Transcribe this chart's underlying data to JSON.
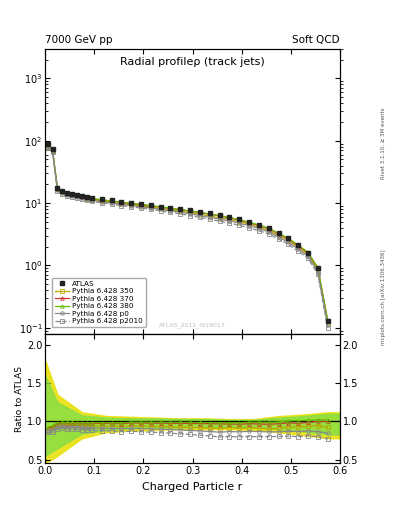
{
  "title": "Radial profileρ (track jets)",
  "top_left_label": "7000 GeV pp",
  "top_right_label": "Soft QCD",
  "right_label_top": "Rivet 3.1.10, ≥ 3M events",
  "right_label_bot": "mcplots.cern.ch [arXiv:1306.3436]",
  "watermark": "ATLAS_2011_I919017",
  "xlabel": "Charged Particle r",
  "ylabel_ratio": "Ratio to ATLAS",
  "background_color": "#ffffff",
  "atlas_x": [
    0.005,
    0.015,
    0.025,
    0.035,
    0.045,
    0.055,
    0.065,
    0.075,
    0.085,
    0.095,
    0.115,
    0.135,
    0.155,
    0.175,
    0.195,
    0.215,
    0.235,
    0.255,
    0.275,
    0.295,
    0.315,
    0.335,
    0.355,
    0.375,
    0.395,
    0.415,
    0.435,
    0.455,
    0.475,
    0.495,
    0.515,
    0.535,
    0.555,
    0.575
  ],
  "atlas_y": [
    90.0,
    75.0,
    17.5,
    15.5,
    14.5,
    14.0,
    13.5,
    13.0,
    12.5,
    12.0,
    11.5,
    11.0,
    10.5,
    10.0,
    9.6,
    9.2,
    8.8,
    8.4,
    8.0,
    7.6,
    7.2,
    6.8,
    6.4,
    6.0,
    5.5,
    5.0,
    4.5,
    4.0,
    3.3,
    2.7,
    2.1,
    1.6,
    0.9,
    0.13
  ],
  "py350_y": [
    80.0,
    68.0,
    16.5,
    14.8,
    13.8,
    13.3,
    12.8,
    12.3,
    11.8,
    11.3,
    10.8,
    10.3,
    9.8,
    9.4,
    9.0,
    8.6,
    8.2,
    7.8,
    7.4,
    7.0,
    6.6,
    6.2,
    5.8,
    5.5,
    5.0,
    4.6,
    4.1,
    3.6,
    3.0,
    2.5,
    1.95,
    1.5,
    0.85,
    0.12
  ],
  "py370_y": [
    82.0,
    70.0,
    17.0,
    15.2,
    14.2,
    13.7,
    13.2,
    12.7,
    12.2,
    11.7,
    11.2,
    10.7,
    10.2,
    9.8,
    9.4,
    9.0,
    8.6,
    8.2,
    7.8,
    7.4,
    7.0,
    6.6,
    6.2,
    5.8,
    5.3,
    4.85,
    4.35,
    3.85,
    3.2,
    2.65,
    2.05,
    1.58,
    0.9,
    0.13
  ],
  "py380_y": [
    83.0,
    71.0,
    17.2,
    15.3,
    14.3,
    13.8,
    13.3,
    12.8,
    12.3,
    11.8,
    11.3,
    10.8,
    10.3,
    9.9,
    9.5,
    9.1,
    8.7,
    8.3,
    7.9,
    7.5,
    7.1,
    6.7,
    6.3,
    5.9,
    5.4,
    4.95,
    4.45,
    3.95,
    3.28,
    2.72,
    2.12,
    1.62,
    0.92,
    0.132
  ],
  "pyp0_y": [
    79.0,
    67.0,
    16.2,
    14.5,
    13.5,
    13.0,
    12.5,
    12.0,
    11.5,
    11.0,
    10.5,
    10.0,
    9.5,
    9.1,
    8.7,
    8.3,
    7.9,
    7.5,
    7.1,
    6.7,
    6.3,
    5.9,
    5.5,
    5.2,
    4.75,
    4.35,
    3.9,
    3.45,
    2.85,
    2.35,
    1.82,
    1.4,
    0.78,
    0.11
  ],
  "pyp2010_y": [
    77.0,
    65.0,
    15.8,
    14.1,
    13.1,
    12.6,
    12.1,
    11.6,
    11.1,
    10.6,
    10.1,
    9.6,
    9.1,
    8.7,
    8.3,
    7.9,
    7.5,
    7.1,
    6.7,
    6.3,
    5.9,
    5.5,
    5.1,
    4.8,
    4.4,
    4.0,
    3.6,
    3.2,
    2.65,
    2.18,
    1.68,
    1.3,
    0.72,
    0.1
  ],
  "ratio_x": [
    0.005,
    0.015,
    0.025,
    0.035,
    0.045,
    0.055,
    0.065,
    0.075,
    0.085,
    0.095,
    0.115,
    0.135,
    0.155,
    0.175,
    0.195,
    0.215,
    0.235,
    0.255,
    0.275,
    0.295,
    0.315,
    0.335,
    0.355,
    0.375,
    0.395,
    0.415,
    0.435,
    0.455,
    0.475,
    0.495,
    0.515,
    0.535,
    0.555,
    0.575
  ],
  "ratio_py350": [
    0.89,
    0.91,
    0.94,
    0.955,
    0.952,
    0.95,
    0.948,
    0.946,
    0.944,
    0.942,
    0.94,
    0.936,
    0.933,
    0.94,
    0.938,
    0.935,
    0.932,
    0.929,
    0.925,
    0.921,
    0.917,
    0.912,
    0.906,
    0.917,
    0.909,
    0.92,
    0.911,
    0.9,
    0.909,
    0.926,
    0.929,
    0.938,
    0.944,
    0.923
  ],
  "ratio_py370": [
    0.91,
    0.93,
    0.97,
    0.981,
    0.979,
    0.979,
    0.978,
    0.977,
    0.976,
    0.975,
    0.974,
    0.973,
    0.971,
    0.98,
    0.979,
    0.978,
    0.977,
    0.976,
    0.975,
    0.974,
    0.972,
    0.971,
    0.969,
    0.967,
    0.964,
    0.97,
    0.967,
    0.963,
    0.97,
    0.981,
    0.976,
    0.988,
    1.0,
    1.0
  ],
  "ratio_py380": [
    0.92,
    0.945,
    0.983,
    0.987,
    0.986,
    0.986,
    0.985,
    0.985,
    0.984,
    0.983,
    0.983,
    0.982,
    0.981,
    0.99,
    0.99,
    0.989,
    0.989,
    0.988,
    0.988,
    0.987,
    0.986,
    0.985,
    0.984,
    0.983,
    0.982,
    0.99,
    0.989,
    0.988,
    0.994,
    1.007,
    1.01,
    1.013,
    1.022,
    1.015
  ],
  "ratio_pyp0": [
    0.878,
    0.893,
    0.926,
    0.935,
    0.931,
    0.929,
    0.926,
    0.923,
    0.92,
    0.917,
    0.913,
    0.909,
    0.905,
    0.91,
    0.906,
    0.902,
    0.898,
    0.893,
    0.888,
    0.882,
    0.875,
    0.868,
    0.859,
    0.867,
    0.864,
    0.87,
    0.867,
    0.863,
    0.864,
    0.87,
    0.867,
    0.875,
    0.867,
    0.846
  ],
  "ratio_pyp2010": [
    0.856,
    0.867,
    0.903,
    0.91,
    0.903,
    0.9,
    0.896,
    0.892,
    0.888,
    0.883,
    0.878,
    0.873,
    0.867,
    0.87,
    0.865,
    0.859,
    0.852,
    0.845,
    0.838,
    0.829,
    0.819,
    0.809,
    0.797,
    0.8,
    0.8,
    0.8,
    0.8,
    0.8,
    0.803,
    0.807,
    0.8,
    0.813,
    0.8,
    0.769
  ],
  "band350_x": [
    0.0,
    0.025,
    0.075,
    0.125,
    0.175,
    0.225,
    0.275,
    0.325,
    0.375,
    0.425,
    0.475,
    0.525,
    0.575,
    0.6
  ],
  "band350_hi": [
    1.8,
    1.35,
    1.12,
    1.07,
    1.06,
    1.05,
    1.04,
    1.04,
    1.03,
    1.03,
    1.07,
    1.09,
    1.12,
    1.12
  ],
  "band350_lo": [
    0.45,
    0.55,
    0.78,
    0.86,
    0.88,
    0.89,
    0.9,
    0.9,
    0.9,
    0.89,
    0.86,
    0.82,
    0.78,
    0.78
  ],
  "band380_x": [
    0.0,
    0.025,
    0.075,
    0.125,
    0.175,
    0.225,
    0.275,
    0.325,
    0.375,
    0.425,
    0.475,
    0.525,
    0.575,
    0.6
  ],
  "band380_hi": [
    1.6,
    1.25,
    1.08,
    1.05,
    1.04,
    1.04,
    1.03,
    1.03,
    1.02,
    1.02,
    1.05,
    1.07,
    1.1,
    1.1
  ],
  "band380_lo": [
    0.55,
    0.65,
    0.84,
    0.89,
    0.91,
    0.92,
    0.92,
    0.93,
    0.93,
    0.92,
    0.9,
    0.87,
    0.83,
    0.83
  ],
  "color_350": "#b8a800",
  "color_370": "#cc3333",
  "color_380": "#66bb00",
  "color_p0": "#888888",
  "color_p2010": "#888888",
  "color_atlas": "#222222",
  "color_band_350": "#e8e000",
  "color_band_380": "#88dd44",
  "xlim": [
    0.0,
    0.6
  ],
  "ylim_main": [
    0.08,
    3000.0
  ],
  "ylim_ratio": [
    0.45,
    2.15
  ],
  "ratio_yticks": [
    0.5,
    1.0,
    1.5,
    2.0
  ]
}
